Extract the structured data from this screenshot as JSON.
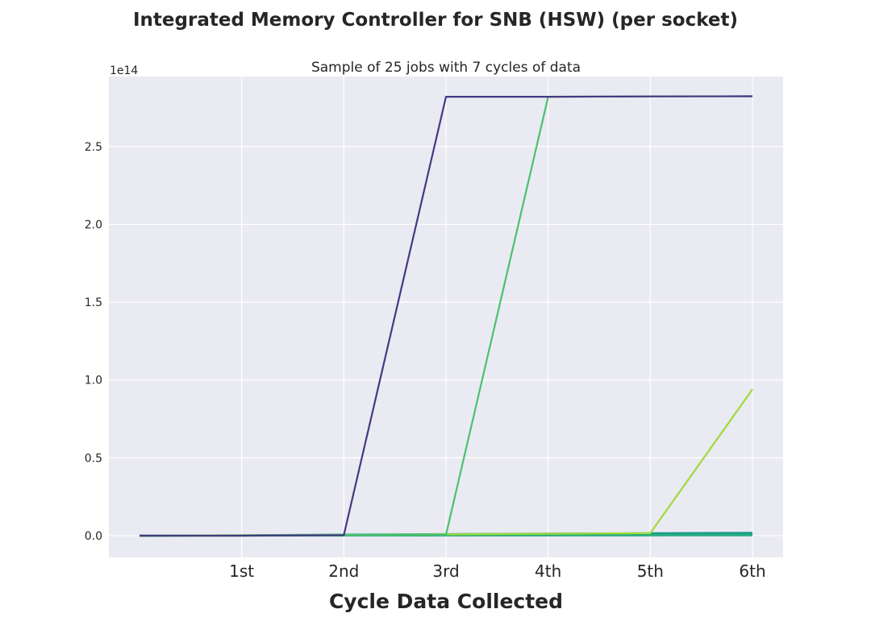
{
  "figure": {
    "suptitle": "Integrated Memory Controller for SNB (HSW) (per socket)"
  },
  "chart_data": {
    "type": "line",
    "title": "Sample of 25 jobs with 7 cycles of data",
    "xlabel": "Cycle Data Collected",
    "ylabel": "",
    "y_offset_text": "1e14",
    "x": [
      0,
      1,
      2,
      3,
      4,
      5,
      6
    ],
    "xtick_values": [
      1,
      2,
      3,
      4,
      5,
      6
    ],
    "xtick_labels": [
      "1st",
      "2nd",
      "3rd",
      "4th",
      "5th",
      "6th"
    ],
    "xlim": [
      -0.3,
      6.3
    ],
    "ylim": [
      -14000000000000,
      295000000000000
    ],
    "ytick_values": [
      0,
      50000000000000,
      100000000000000,
      150000000000000,
      200000000000000,
      250000000000000
    ],
    "ytick_labels": [
      "0.0",
      "0.5",
      "1.0",
      "1.5",
      "2.0",
      "2.5"
    ],
    "grid": true,
    "background": "#eaeaf2",
    "series": [
      {
        "color": "#443983",
        "values": [
          0,
          0,
          300000000000,
          282000000000000,
          282000000000000,
          282200000000000,
          282300000000000
        ]
      },
      {
        "color": "#4ac16d",
        "values": [
          0,
          0,
          300000000000,
          600000000000,
          282000000000000,
          282200000000000,
          282300000000000
        ]
      },
      {
        "color": "#a0da39",
        "values": [
          0,
          200000000000,
          400000000000,
          800000000000,
          1200000000000,
          1600000000000,
          94000000000000
        ]
      },
      {
        "color": "#1e9b8a",
        "values": [
          0,
          300000000000,
          700000000000,
          1000000000000,
          1300000000000,
          1600000000000,
          1900000000000
        ]
      },
      {
        "color": "#22a884",
        "values": [
          0,
          200000000000,
          500000000000,
          800000000000,
          1000000000000,
          1300000000000,
          1500000000000
        ]
      },
      {
        "color": "#2db27d",
        "values": [
          0,
          100000000000,
          300000000000,
          500000000000,
          700000000000,
          900000000000,
          1100000000000
        ]
      },
      {
        "color": "#27ad81",
        "values": [
          0,
          100000000000,
          200000000000,
          300000000000,
          400000000000,
          500000000000,
          600000000000
        ]
      },
      {
        "color": "#1fa187",
        "values": [
          0,
          50000000000,
          100000000000,
          150000000000,
          200000000000,
          250000000000,
          300000000000
        ]
      },
      {
        "color": "#35b779",
        "values": [
          0,
          30000000000,
          60000000000,
          90000000000,
          120000000000,
          150000000000,
          180000000000
        ]
      }
    ]
  }
}
